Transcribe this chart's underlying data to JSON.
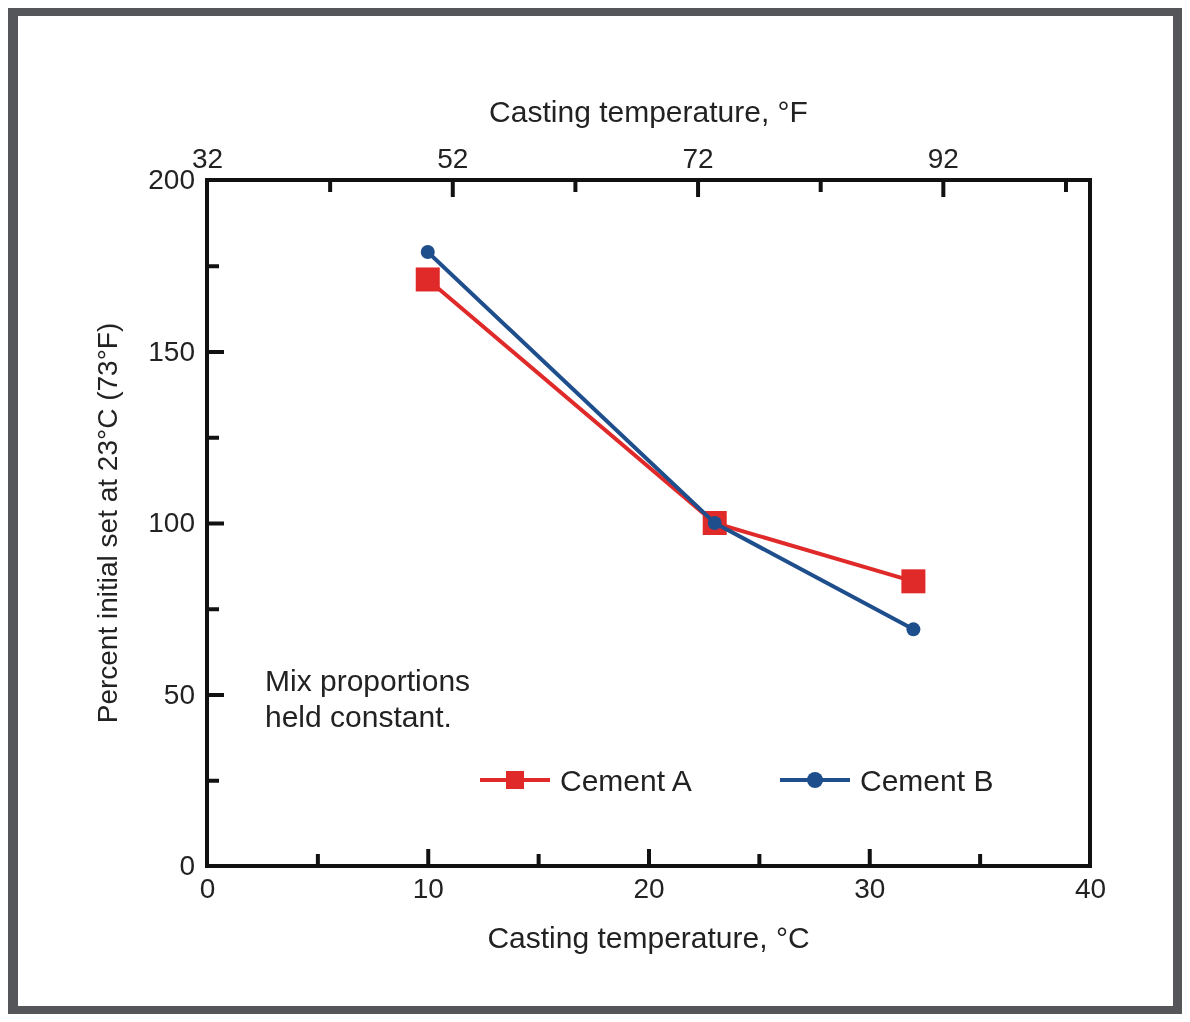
{
  "chart_data": {
    "type": "line",
    "xlabel": "Casting temperature, °C",
    "ylabel": "Percent initial set at 23°C (73°F)",
    "x2label": "Casting temperature, °F",
    "x": [
      10,
      23,
      32
    ],
    "series": [
      {
        "name": "Cement A",
        "color": "#e02a2a",
        "marker": "square",
        "values": [
          171,
          100,
          83
        ]
      },
      {
        "name": "Cement B",
        "color": "#1f4e8c",
        "marker": "circle",
        "values": [
          179,
          100,
          69
        ]
      }
    ],
    "xlim": [
      0,
      40
    ],
    "xticks": [
      0,
      {
        "value": 5,
        "label": null
      },
      10,
      {
        "value": 15,
        "label": null
      },
      20,
      {
        "value": 25,
        "label": null
      },
      30,
      {
        "value": 35,
        "label": null
      },
      40
    ],
    "ylim": [
      0,
      200
    ],
    "yticks": [
      0,
      {
        "value": 25,
        "label": null
      },
      50,
      {
        "value": 75,
        "label": null
      },
      100,
      {
        "value": 125,
        "label": null
      },
      150,
      {
        "value": 175,
        "label": null
      },
      200
    ],
    "x2lim": [
      32,
      104
    ],
    "x2ticks": [
      32,
      {
        "value": 42,
        "label": null
      },
      52,
      {
        "value": 62,
        "label": null
      },
      72,
      {
        "value": 82,
        "label": null
      },
      92,
      {
        "value": 102,
        "label": null
      }
    ],
    "annotations": [
      "Mix proportions\nheld constant."
    ],
    "legend": "bottom right",
    "line_style": "solid",
    "grid": false
  }
}
